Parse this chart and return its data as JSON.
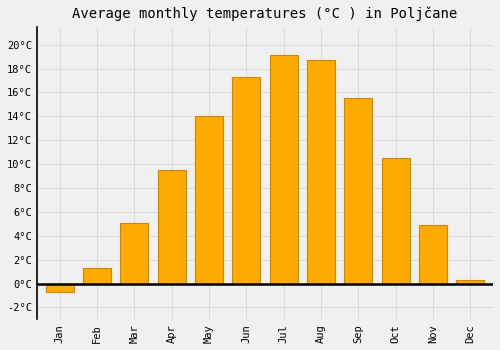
{
  "months": [
    "Jan",
    "Feb",
    "Mar",
    "Apr",
    "May",
    "Jun",
    "Jul",
    "Aug",
    "Sep",
    "Oct",
    "Nov",
    "Dec"
  ],
  "temperatures": [
    -0.7,
    1.3,
    5.1,
    9.5,
    14.0,
    17.3,
    19.1,
    18.7,
    15.5,
    10.5,
    4.9,
    0.3
  ],
  "bar_color": "#FFAA00",
  "bar_edge_color": "#CC8800",
  "title": "Average monthly temperatures (°C ) in Poljčane",
  "ylabel_ticks": [
    "-2°C",
    "0°C",
    "2°C",
    "4°C",
    "6°C",
    "8°C",
    "10°C",
    "12°C",
    "14°C",
    "16°C",
    "18°C",
    "20°C"
  ],
  "yticks": [
    -2,
    0,
    2,
    4,
    6,
    8,
    10,
    12,
    14,
    16,
    18,
    20
  ],
  "ylim": [
    -3.0,
    21.5
  ],
  "background_color": "#f0f0f0",
  "grid_color": "#d8d8d8",
  "title_fontsize": 10,
  "tick_fontsize": 7.5,
  "font_family": "monospace"
}
